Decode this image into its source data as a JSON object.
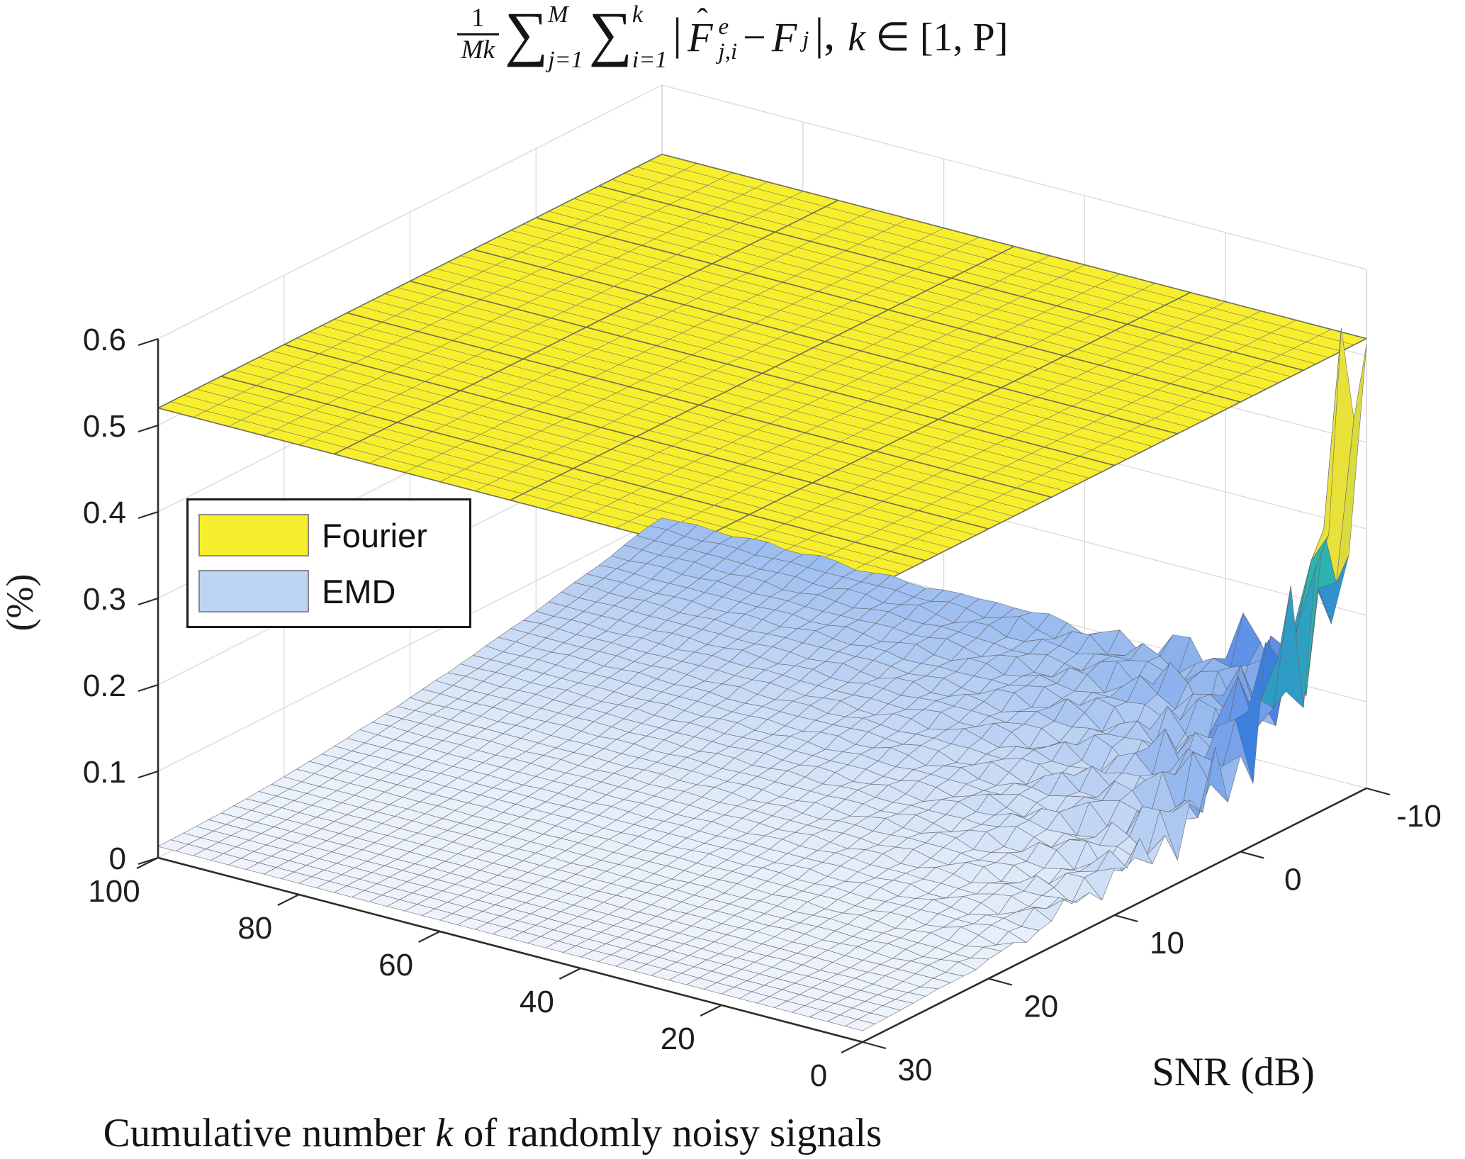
{
  "title": {
    "frac_num": "1",
    "frac_den": "Mk",
    "sum1_sym": "∑",
    "sum1_sup": "M",
    "sum1_sub": "j=1",
    "sum2_sym": "∑",
    "sum2_sup": "k",
    "sum2_sub": "i=1",
    "bar_open": "|",
    "F_hat_letter": "F",
    "hat_mark": "ˆ",
    "F_hat_sup": "e",
    "F_hat_sub": "j,i",
    "minus": "−",
    "F2": "F",
    "F2_sub": "j",
    "bar_close": "|,",
    "range_k": "k",
    "range_rest": " ∈ [1, P]"
  },
  "legend": {
    "items": [
      {
        "label": "Fourier",
        "color": "#f7ef2e"
      },
      {
        "label": "EMD",
        "color": "#bdd4f5"
      }
    ]
  },
  "chart_data": {
    "type": "surface3d",
    "title_plain": "(1/Mk) sum_{j=1}^{M} sum_{i=1}^{k} |F^e_{j,i} - F_j| , k in [1,P]",
    "view": "MATLAB default 3-D view (azimuth -37.5 deg, elevation 30 deg), orthographic",
    "grid": true,
    "axes": {
      "x": {
        "label_pre": "Cumulative number ",
        "label_var": "k",
        "label_post": " of randomly noisy signals",
        "ticks": [
          100,
          80,
          60,
          40,
          20,
          0
        ],
        "lim": [
          0,
          100
        ]
      },
      "y": {
        "label": "SNR (dB)",
        "ticks": [
          30,
          20,
          10,
          0,
          -10
        ],
        "lim": [
          -10,
          30
        ]
      },
      "z": {
        "label": "(%)",
        "ticks": [
          "0",
          "0.1",
          "0.2",
          "0.3",
          "0.4",
          "0.5",
          "0.6"
        ],
        "lim": [
          0,
          0.6
        ]
      }
    },
    "series": [
      {
        "name": "Fourier",
        "type": "constant-plane",
        "value_percent": 0.52,
        "face_color": "#f7ef2e"
      },
      {
        "name": "EMD",
        "type": "surface-grid",
        "k_values": [
          0,
          2.5,
          5,
          10,
          20,
          40,
          60,
          80,
          100
        ],
        "snr_values": [
          -10,
          -5,
          0,
          5,
          10,
          15,
          20,
          25,
          30
        ],
        "values_percent": [
          [
            0.52,
            0.342,
            0.239,
            0.146,
            0.106,
            0.101,
            0.101,
            0.101,
            0.101
          ],
          [
            0.22,
            0.162,
            0.128,
            0.097,
            0.084,
            0.082,
            0.082,
            0.082,
            0.082
          ],
          [
            0.111,
            0.092,
            0.081,
            0.07,
            0.066,
            0.066,
            0.065,
            0.065,
            0.065
          ],
          [
            0.066,
            0.06,
            0.056,
            0.053,
            0.051,
            0.051,
            0.051,
            0.051,
            0.051
          ],
          [
            0.043,
            0.041,
            0.04,
            0.039,
            0.038,
            0.038,
            0.038,
            0.038,
            0.038
          ],
          [
            0.03,
            0.029,
            0.029,
            0.028,
            0.028,
            0.028,
            0.028,
            0.028,
            0.028
          ],
          [
            0.021,
            0.02,
            0.02,
            0.02,
            0.02,
            0.02,
            0.02,
            0.02,
            0.02
          ],
          [
            0.016,
            0.015,
            0.015,
            0.015,
            0.015,
            0.015,
            0.015,
            0.015,
            0.015
          ],
          [
            0.013,
            0.013,
            0.013,
            0.013,
            0.013,
            0.013,
            0.013,
            0.013,
            0.013
          ]
        ]
      }
    ],
    "noise": {
      "description": "ragged fluctuations of the EMD surface at low SNR and small k",
      "a1": 0.13,
      "a2": 0.016,
      "a3": 0.006,
      "d1": 11,
      "d2": 30
    },
    "colormap": [
      [
        0.0,
        "#f5f8fd"
      ],
      [
        0.035,
        "#e2ecf9"
      ],
      [
        0.07,
        "#c0d5f4"
      ],
      [
        0.11,
        "#96b9ef"
      ],
      [
        0.16,
        "#6495e8"
      ],
      [
        0.21,
        "#4379e4"
      ],
      [
        0.26,
        "#2f8ed2"
      ],
      [
        0.31,
        "#2cb3ae"
      ],
      [
        0.37,
        "#44c27d"
      ],
      [
        0.44,
        "#8ecf55"
      ],
      [
        0.52,
        "#e0dc3c"
      ],
      [
        0.6,
        "#f4ea33"
      ]
    ],
    "mesh_color": "rgba(100,100,108,0.88)",
    "fourier_mesh_color": "rgba(125,123,98,0.8)",
    "wall_grid_color": "#d9d9d9",
    "axis_color": "#2b2b2b",
    "tick_label_color": "#1e1e1e"
  }
}
